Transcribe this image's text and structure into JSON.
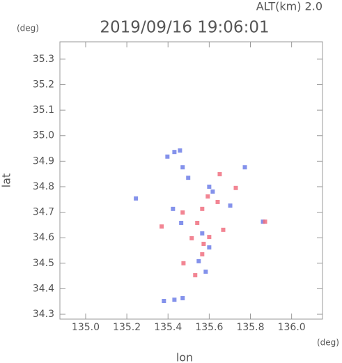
{
  "chart_data": {
    "type": "scatter",
    "title": "2019/09/16 19:06:01",
    "subtitle": "ALT(km) 2.0",
    "x_label": "lon",
    "x_unit": "(deg)",
    "y_label": "lat",
    "y_unit": "(deg)",
    "xlim": [
      134.875,
      136.15
    ],
    "ylim": [
      34.281,
      35.368
    ],
    "xticks": [
      {
        "value": 135.0,
        "label": "135.0"
      },
      135.2,
      135.4,
      135.6,
      135.8,
      {
        "value": 136.0,
        "label": "136.0"
      }
    ],
    "yticks": [
      34.3,
      34.4,
      34.5,
      34.6,
      34.7,
      34.8,
      34.9,
      {
        "value": 35.0,
        "label": "35.0"
      },
      35.1,
      35.2,
      35.3
    ],
    "series": [
      {
        "color": "#6f7fe8",
        "x": [
          135.397,
          135.431,
          135.458,
          135.471,
          135.498,
          135.6,
          135.617,
          135.424,
          135.464,
          135.566,
          135.6,
          135.549,
          135.583,
          135.38,
          135.431,
          135.471,
          135.702,
          135.773,
          135.244,
          135.861
        ],
        "values": [
          34.918,
          34.936,
          34.942,
          34.876,
          34.835,
          34.8,
          34.781,
          34.713,
          34.658,
          34.617,
          34.562,
          34.508,
          34.467,
          34.352,
          34.357,
          34.363,
          34.726,
          34.876,
          34.754,
          34.663
        ]
      },
      {
        "color": "#f07080",
        "x": [
          135.566,
          135.593,
          135.471,
          135.542,
          135.6,
          135.573,
          135.475,
          135.532,
          135.668,
          135.651,
          135.729,
          135.641,
          135.871,
          135.369,
          135.515,
          135.566
        ],
        "values": [
          34.713,
          34.762,
          34.699,
          34.658,
          34.603,
          34.576,
          34.5,
          34.453,
          34.631,
          34.849,
          34.795,
          34.74,
          34.663,
          34.644,
          34.598,
          34.535
        ]
      }
    ]
  }
}
